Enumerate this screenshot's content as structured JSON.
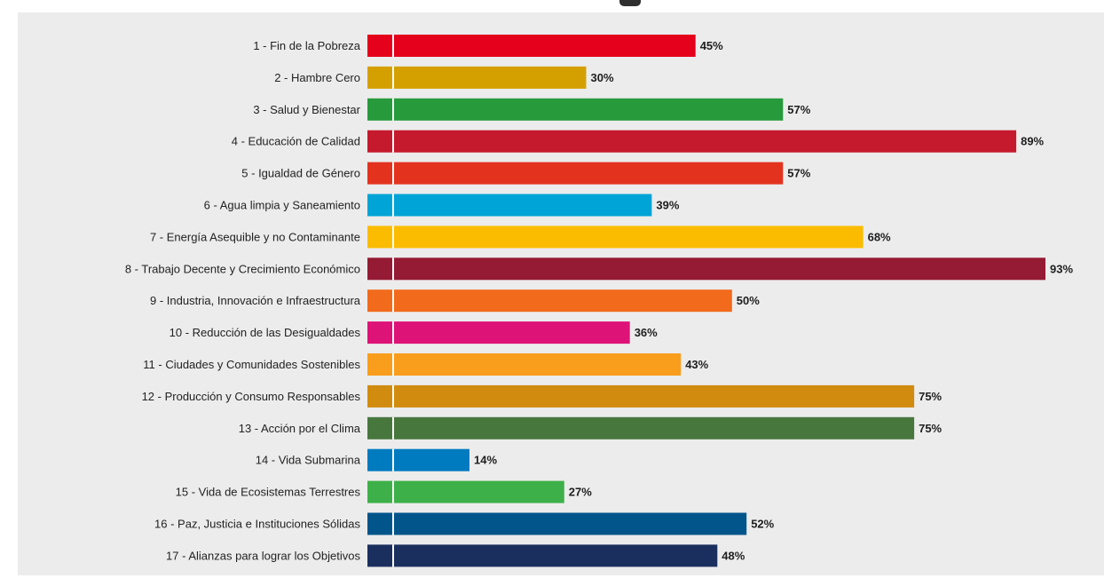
{
  "chart_data": {
    "type": "bar",
    "orientation": "horizontal",
    "title": "",
    "xlabel": "",
    "ylabel": "",
    "xlim": [
      0,
      100
    ],
    "grid": false,
    "legend": "none",
    "value_suffix": "%",
    "categories": [
      "1 - Fin de la Pobreza",
      "2 - Hambre Cero",
      "3 - Salud y Bienestar",
      "4 - Educación de Calidad",
      "5 - Igualdad de Género",
      "6 - Agua limpia y Saneamiento",
      "7 - Energía Asequible y no Contaminante",
      "8 - Trabajo Decente y Crecimiento Económico",
      "9 - Industria, Innovación e Infraestructura",
      "10 - Reducción de las Desigualdades",
      "11 - Ciudades y Comunidades Sostenibles",
      "12 - Producción y Consumo Responsables",
      "13 - Acción por el Clima",
      "14 - Vida Submarina",
      "15 - Vida de Ecosistemas Terrestres",
      "16 - Paz, Justicia e Instituciones Sólidas",
      "17 - Alianzas para lograr los Objetivos"
    ],
    "values": [
      45,
      30,
      57,
      89,
      57,
      39,
      68,
      93,
      50,
      36,
      43,
      75,
      75,
      14,
      27,
      52,
      48
    ],
    "value_labels": [
      "45%",
      "30%",
      "57%",
      "89%",
      "57%",
      "39%",
      "68%",
      "93%",
      "50%",
      "36%",
      "43%",
      "75%",
      "75%",
      "14%",
      "27%",
      "52%",
      "48%"
    ],
    "colors": [
      "#e5001b",
      "#d4a000",
      "#279a3c",
      "#c5192d",
      "#e3331f",
      "#00a4d6",
      "#fbbc00",
      "#951a33",
      "#f26a1b",
      "#dd1378",
      "#f99d1c",
      "#d18b0f",
      "#48773e",
      "#007bc0",
      "#3eb049",
      "#02558b",
      "#1b2f5e"
    ]
  }
}
